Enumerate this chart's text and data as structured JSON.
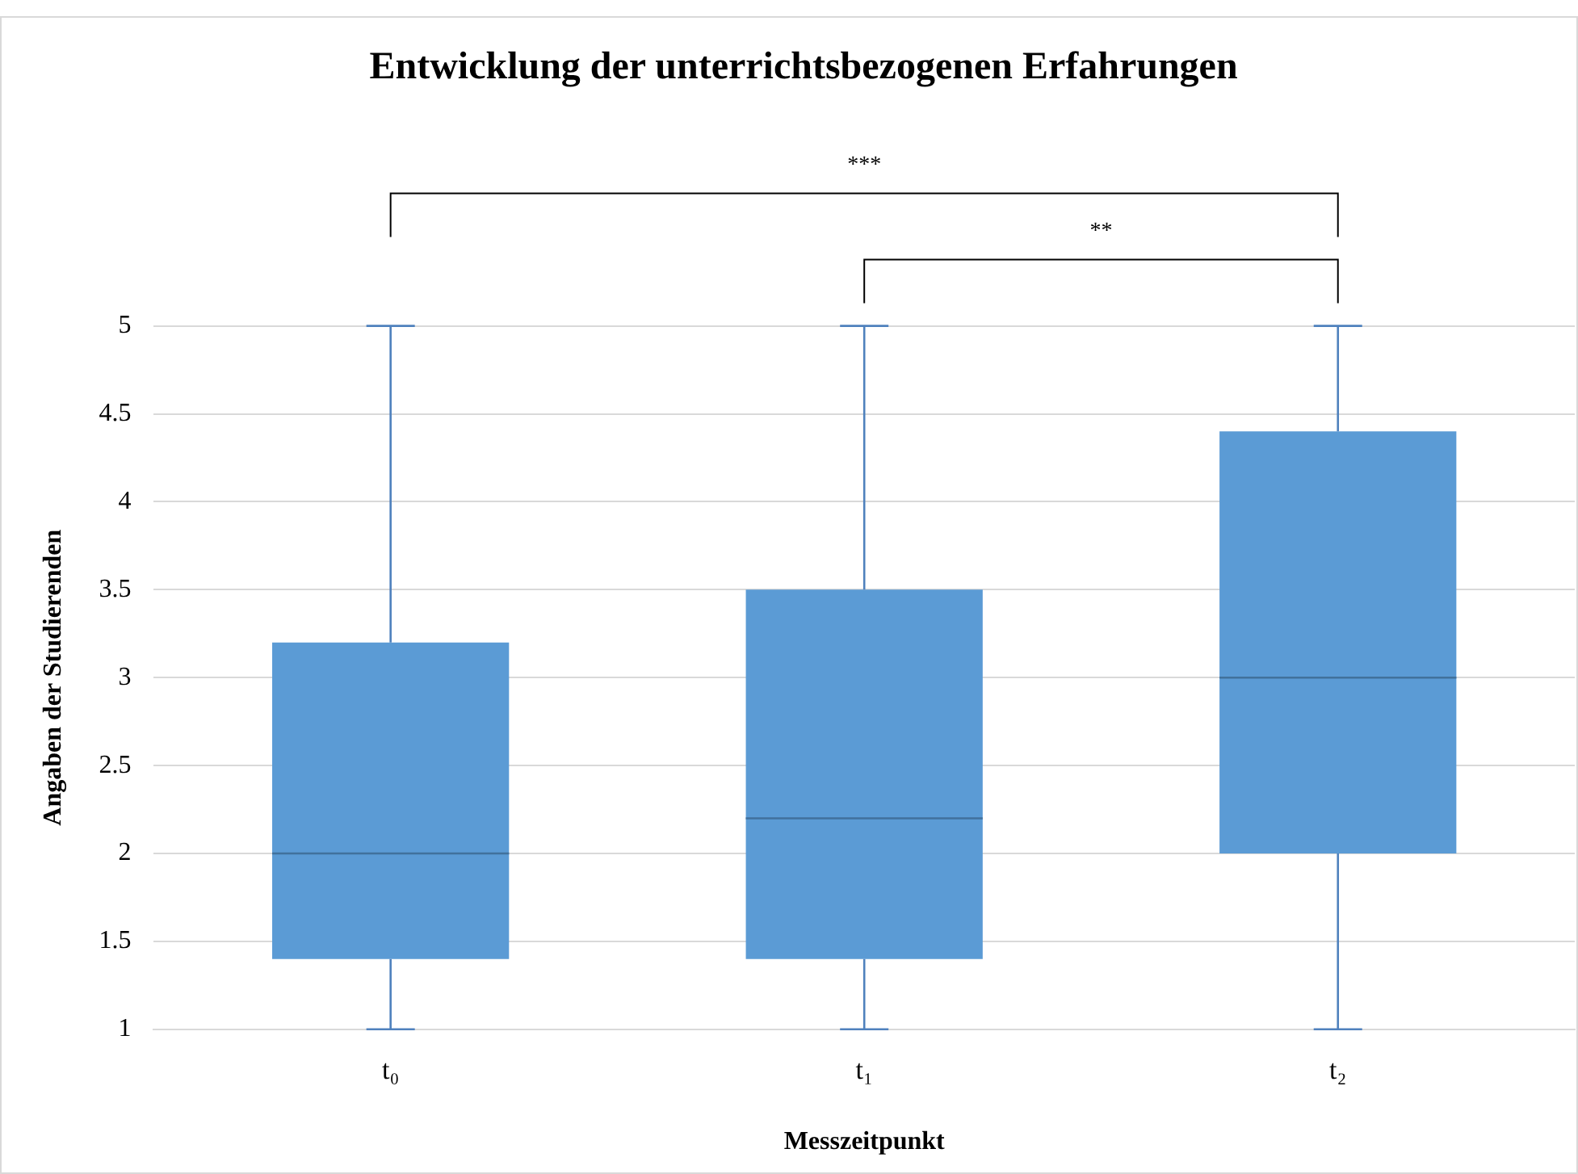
{
  "chart_data": {
    "type": "box",
    "title": "Entwicklung der unterrichtsbezogenen Erfahrungen",
    "xlabel": "Messzeitpunkt",
    "ylabel": "Angaben der Studierenden",
    "categories": [
      "t₀",
      "t₁",
      "t₂"
    ],
    "boxes": [
      {
        "low": 1,
        "q1": 1.4,
        "median": 2,
        "q3": 3.2,
        "high": 5
      },
      {
        "low": 1,
        "q1": 1.4,
        "median": 2.2,
        "q3": 3.5,
        "high": 5
      },
      {
        "low": 1,
        "q1": 2,
        "median": 3,
        "q3": 4.4,
        "high": 5
      }
    ],
    "color": "#5b9bd5",
    "ylim": [
      1,
      5
    ],
    "yticks": [
      1,
      1.5,
      2,
      2.5,
      3,
      3.5,
      4,
      4.5,
      5
    ],
    "grid": "y",
    "legend": false,
    "annotations": [
      "***",
      "**"
    ]
  }
}
